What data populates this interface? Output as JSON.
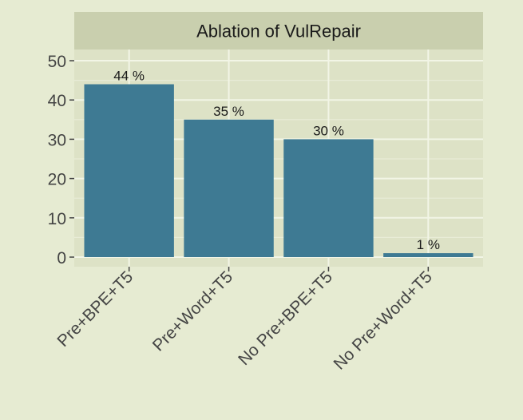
{
  "chart_data": {
    "type": "bar",
    "title": "Ablation of VulRepair",
    "categories": [
      "Pre+BPE+T5",
      "Pre+Word+T5",
      "No Pre+BPE+T5",
      "No Pre+Word+T5"
    ],
    "values": [
      44,
      35,
      30,
      1
    ],
    "value_labels": [
      "44 %",
      "35 %",
      "30 %",
      "1 %"
    ],
    "ylim": [
      0,
      50
    ],
    "yticks": [
      0,
      10,
      20,
      30,
      40,
      50
    ],
    "xlabel": "",
    "ylabel": "",
    "grid": true
  },
  "colors": {
    "background": "#e6ebd2",
    "panel": "#dde2c6",
    "strip": "#c9cfae",
    "grid_major": "#f2f5e6",
    "grid_minor": "#e8ecd7",
    "bar": "#3e7a93",
    "text": "#1a1a1a",
    "axis_text": "#444444"
  }
}
